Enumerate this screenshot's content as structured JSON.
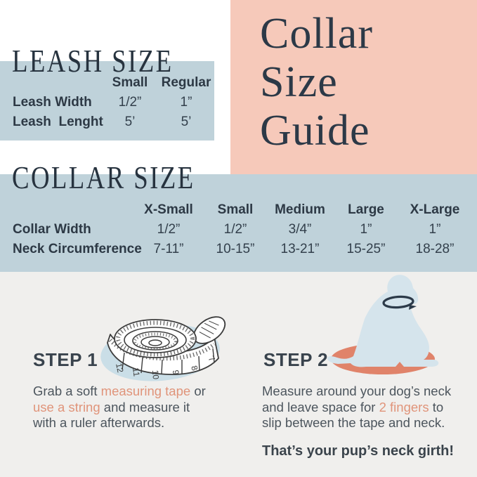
{
  "title": {
    "lines": [
      "Collar",
      "Size",
      "Guide"
    ]
  },
  "leash_size": {
    "heading": "LEASH SIZE",
    "columns": [
      "Small",
      "Regular"
    ],
    "rows": [
      {
        "label": "Leash Width",
        "values": [
          "1/2”",
          "1”"
        ]
      },
      {
        "label": "Leash  Lenght",
        "values": [
          "5’",
          "5’"
        ]
      }
    ]
  },
  "collar_size": {
    "heading": "COLLAR SIZE",
    "columns": [
      "X-Small",
      "Small",
      "Medium",
      "Large",
      "X-Large"
    ],
    "rows": [
      {
        "label": "Collar Width",
        "values": [
          "1/2”",
          "1/2”",
          "3/4”",
          "1”",
          "1”"
        ]
      },
      {
        "label": "Neck Circumference",
        "values": [
          "7-11”",
          "10-15”",
          "13-21”",
          "15-25”",
          "18-28”"
        ]
      }
    ]
  },
  "steps": {
    "step1": {
      "heading": "STEP 1",
      "parts": [
        {
          "t": "Grab a soft "
        },
        {
          "t": "measuring tape",
          "hl": true
        },
        {
          "t": " or"
        },
        {
          "br": true
        },
        {
          "t": "use a string",
          "hl": true
        },
        {
          "t": " and measure it"
        },
        {
          "br": true
        },
        {
          "t": "with a ruler afterwards."
        }
      ]
    },
    "step2": {
      "heading": "STEP 2",
      "parts": [
        {
          "t": "Measure around your dog’s neck"
        },
        {
          "br": true
        },
        {
          "t": "and leave space for "
        },
        {
          "t": "2 fingers",
          "hl": true
        },
        {
          "t": " to"
        },
        {
          "br": true
        },
        {
          "t": "slip between the tape and neck."
        }
      ],
      "footer": "That’s your pup’s neck girth!"
    }
  },
  "illustrations": {
    "tape": "measuring-tape",
    "dog": "sitting-dog-with-collar-arrow"
  },
  "colors": {
    "pink": "#f6c9ba",
    "blue_panel": "#bfd2da",
    "bottom_panel": "#f0efed",
    "navy": "#27333f",
    "table_text": "#2d3945",
    "body_text": "#4c555d",
    "salmon_text": "#e0947a",
    "coral": "#e0836a",
    "dog_blue": "#d5e4ec",
    "blob_blue": "#cadee7"
  }
}
